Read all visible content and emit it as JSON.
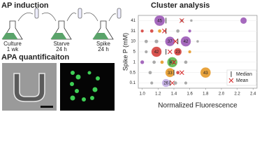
{
  "panels": {
    "induction": {
      "title": "AP induction",
      "steps": [
        {
          "label": "Culture",
          "duration": "1 wk"
        },
        {
          "label": "Starve",
          "duration": "24 h"
        },
        {
          "label": "Spike",
          "duration": "24 h"
        }
      ]
    },
    "quantification": {
      "title": "APA quantificaiton"
    }
  },
  "chart_data": {
    "type": "bubble",
    "title": "Cluster analysis",
    "x_label": "Normalized Fluorescence",
    "y_label": "Spike P (mM)",
    "y_categories": [
      "0.1",
      "0.5",
      "1",
      "5",
      "10",
      "31",
      "41"
    ],
    "xlim": [
      0.95,
      2.45
    ],
    "xticks": [
      {
        "value": 1,
        "label": "1.0"
      },
      1.2,
      1.4,
      1.6,
      1.8,
      {
        "value": 2,
        "label": "2.0"
      },
      2.2,
      2.4
    ],
    "points": {
      "x": [
        1.22,
        1.5,
        1.62,
        2.28,
        1.0,
        1.12,
        1.22,
        1.45,
        1.6,
        1.05,
        1.18,
        1.35,
        1.55,
        1.7,
        1.05,
        1.18,
        1.45,
        1.6,
        1.0,
        1.15,
        1.25,
        1.38,
        1.55,
        1.1,
        1.35,
        1.45,
        1.8,
        1.12,
        1.3,
        1.42,
        1.55
      ],
      "y": [
        "41",
        "41",
        "41",
        "41",
        "31",
        "31",
        "31",
        "31",
        "31",
        "10",
        "10",
        "10",
        "10",
        "10",
        "5",
        "5",
        "5",
        "5",
        "1",
        "1",
        "1",
        "1",
        "1",
        "0.5",
        "0.5",
        "0.5",
        "0.5",
        "0.1",
        "0.1",
        "0.1",
        "0.1"
      ],
      "size": [
        45,
        4,
        3,
        17,
        4,
        5,
        5,
        5,
        4,
        5,
        6,
        37,
        42,
        3,
        4,
        42,
        23,
        4,
        6,
        5,
        5,
        42,
        5,
        5,
        33,
        5,
        43,
        4,
        26,
        5,
        4
      ],
      "colors": [
        "#a569bd",
        "#aaaaaa",
        "#aaaaaa",
        "#a569bd",
        "#d9534f",
        "#d9534f",
        "#e8a33d",
        "#aaaaaa",
        "#a569bd",
        "#aaaaaa",
        "#aaaaaa",
        "#a569bd",
        "#a569bd",
        "#aaaaaa",
        "#aaaaaa",
        "#d9534f",
        "#d9534f",
        "#e8a33d",
        "#a569bd",
        "#aaaaaa",
        "#e8a33d",
        "#6cbf5c",
        "#aaaaaa",
        "#aaaaaa",
        "#e8a33d",
        "#d9534f",
        "#e8a33d",
        "#aaaaaa",
        "#c7b3e6",
        "#aaaaaa",
        "#aaaaaa"
      ]
    },
    "series": [
      {
        "name": "Median",
        "marker": "|",
        "color": "#333333",
        "x": [
          1.35,
          1.4,
          1.35,
          1.3,
          1.45,
          1.3,
          1.3
        ]
      },
      {
        "name": "Mean",
        "marker": "x",
        "color": "#d62728",
        "x": [
          1.38,
          1.5,
          1.4,
          1.35,
          1.42,
          1.28,
          1.5
        ]
      }
    ]
  }
}
